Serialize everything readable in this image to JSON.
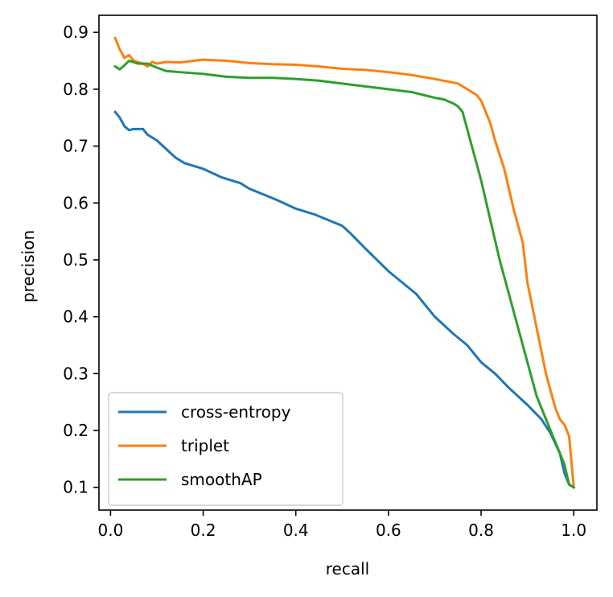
{
  "chart_data": {
    "type": "line",
    "title": "",
    "xlabel": "recall",
    "ylabel": "precision",
    "xlim": [
      -0.025,
      1.05
    ],
    "ylim": [
      0.06,
      0.93
    ],
    "xticks": [
      0.0,
      0.2,
      0.4,
      0.6,
      0.8,
      1.0
    ],
    "xtick_labels": [
      "0.0",
      "0.2",
      "0.4",
      "0.6",
      "0.8",
      "1.0"
    ],
    "yticks": [
      0.1,
      0.2,
      0.3,
      0.4,
      0.5,
      0.6,
      0.7,
      0.8,
      0.9
    ],
    "ytick_labels": [
      "0.1",
      "0.2",
      "0.3",
      "0.4",
      "0.5",
      "0.6",
      "0.7",
      "0.8",
      "0.9"
    ],
    "grid": false,
    "legend": "lower-left",
    "series": [
      {
        "name": "cross-entropy",
        "color": "#1f77b4",
        "x": [
          0.01,
          0.02,
          0.03,
          0.04,
          0.05,
          0.07,
          0.08,
          0.1,
          0.12,
          0.14,
          0.16,
          0.2,
          0.24,
          0.28,
          0.3,
          0.33,
          0.36,
          0.4,
          0.44,
          0.47,
          0.5,
          0.52,
          0.55,
          0.6,
          0.63,
          0.66,
          0.7,
          0.74,
          0.77,
          0.8,
          0.83,
          0.86,
          0.9,
          0.93,
          0.95,
          0.97,
          0.98,
          0.99,
          1.0
        ],
        "y": [
          0.76,
          0.75,
          0.735,
          0.728,
          0.73,
          0.73,
          0.72,
          0.71,
          0.695,
          0.68,
          0.67,
          0.66,
          0.645,
          0.635,
          0.625,
          0.615,
          0.605,
          0.59,
          0.58,
          0.57,
          0.56,
          0.545,
          0.52,
          0.48,
          0.46,
          0.44,
          0.4,
          0.37,
          0.35,
          0.32,
          0.3,
          0.275,
          0.245,
          0.22,
          0.195,
          0.16,
          0.125,
          0.105,
          0.1
        ]
      },
      {
        "name": "triplet",
        "color": "#ff7f0e",
        "x": [
          0.01,
          0.02,
          0.03,
          0.04,
          0.05,
          0.07,
          0.08,
          0.09,
          0.1,
          0.12,
          0.15,
          0.2,
          0.25,
          0.3,
          0.35,
          0.4,
          0.45,
          0.5,
          0.55,
          0.6,
          0.65,
          0.7,
          0.75,
          0.77,
          0.79,
          0.8,
          0.81,
          0.82,
          0.83,
          0.85,
          0.87,
          0.89,
          0.9,
          0.92,
          0.94,
          0.96,
          0.97,
          0.98,
          0.99,
          1.0
        ],
        "y": [
          0.89,
          0.87,
          0.855,
          0.86,
          0.85,
          0.845,
          0.84,
          0.848,
          0.845,
          0.848,
          0.847,
          0.852,
          0.85,
          0.846,
          0.844,
          0.843,
          0.84,
          0.836,
          0.834,
          0.83,
          0.825,
          0.818,
          0.81,
          0.8,
          0.79,
          0.78,
          0.76,
          0.74,
          0.71,
          0.66,
          0.59,
          0.53,
          0.46,
          0.38,
          0.3,
          0.24,
          0.22,
          0.21,
          0.19,
          0.1
        ]
      },
      {
        "name": "smoothAP",
        "color": "#2ca02c",
        "x": [
          0.01,
          0.02,
          0.03,
          0.04,
          0.06,
          0.08,
          0.1,
          0.12,
          0.15,
          0.2,
          0.25,
          0.3,
          0.35,
          0.4,
          0.45,
          0.5,
          0.55,
          0.6,
          0.65,
          0.7,
          0.72,
          0.74,
          0.75,
          0.76,
          0.77,
          0.78,
          0.79,
          0.8,
          0.82,
          0.84,
          0.86,
          0.88,
          0.9,
          0.92,
          0.94,
          0.96,
          0.97,
          0.98,
          0.99,
          1.0
        ],
        "y": [
          0.84,
          0.835,
          0.842,
          0.85,
          0.845,
          0.845,
          0.838,
          0.832,
          0.83,
          0.827,
          0.822,
          0.82,
          0.82,
          0.818,
          0.815,
          0.81,
          0.805,
          0.8,
          0.795,
          0.785,
          0.782,
          0.775,
          0.77,
          0.76,
          0.73,
          0.7,
          0.67,
          0.64,
          0.57,
          0.5,
          0.44,
          0.38,
          0.32,
          0.26,
          0.22,
          0.18,
          0.16,
          0.14,
          0.105,
          0.1
        ]
      }
    ]
  }
}
